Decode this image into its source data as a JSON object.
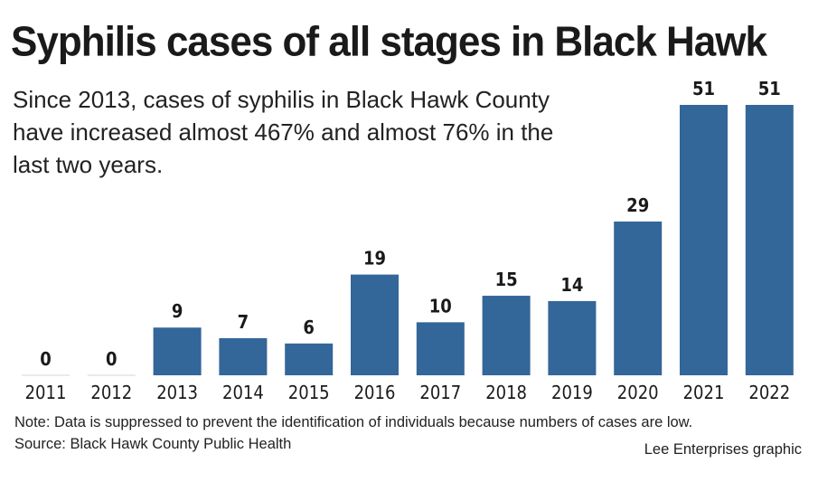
{
  "chart_data": {
    "type": "bar",
    "title": "Syphilis cases of all stages in Black Hawk",
    "subtitle": "Since 2013, cases of syphilis in Black Hawk County have increased almost 467% and almost 76% in the last two years.",
    "categories": [
      "2011",
      "2012",
      "2013",
      "2014",
      "2015",
      "2016",
      "2017",
      "2018",
      "2019",
      "2020",
      "2021",
      "2022"
    ],
    "values": [
      0,
      0,
      9,
      7,
      6,
      19,
      10,
      15,
      14,
      29,
      51,
      51
    ],
    "ylim": [
      0,
      51
    ],
    "grid": false,
    "data_labels": true,
    "bar_color": "#336699",
    "zero_line_color": "#d0d4d8"
  },
  "note": "Note: Data is suppressed to prevent the identification of individuals because numbers of cases are low.",
  "source": "Source: Black Hawk County Public Health",
  "credit": "Lee Enterprises graphic"
}
